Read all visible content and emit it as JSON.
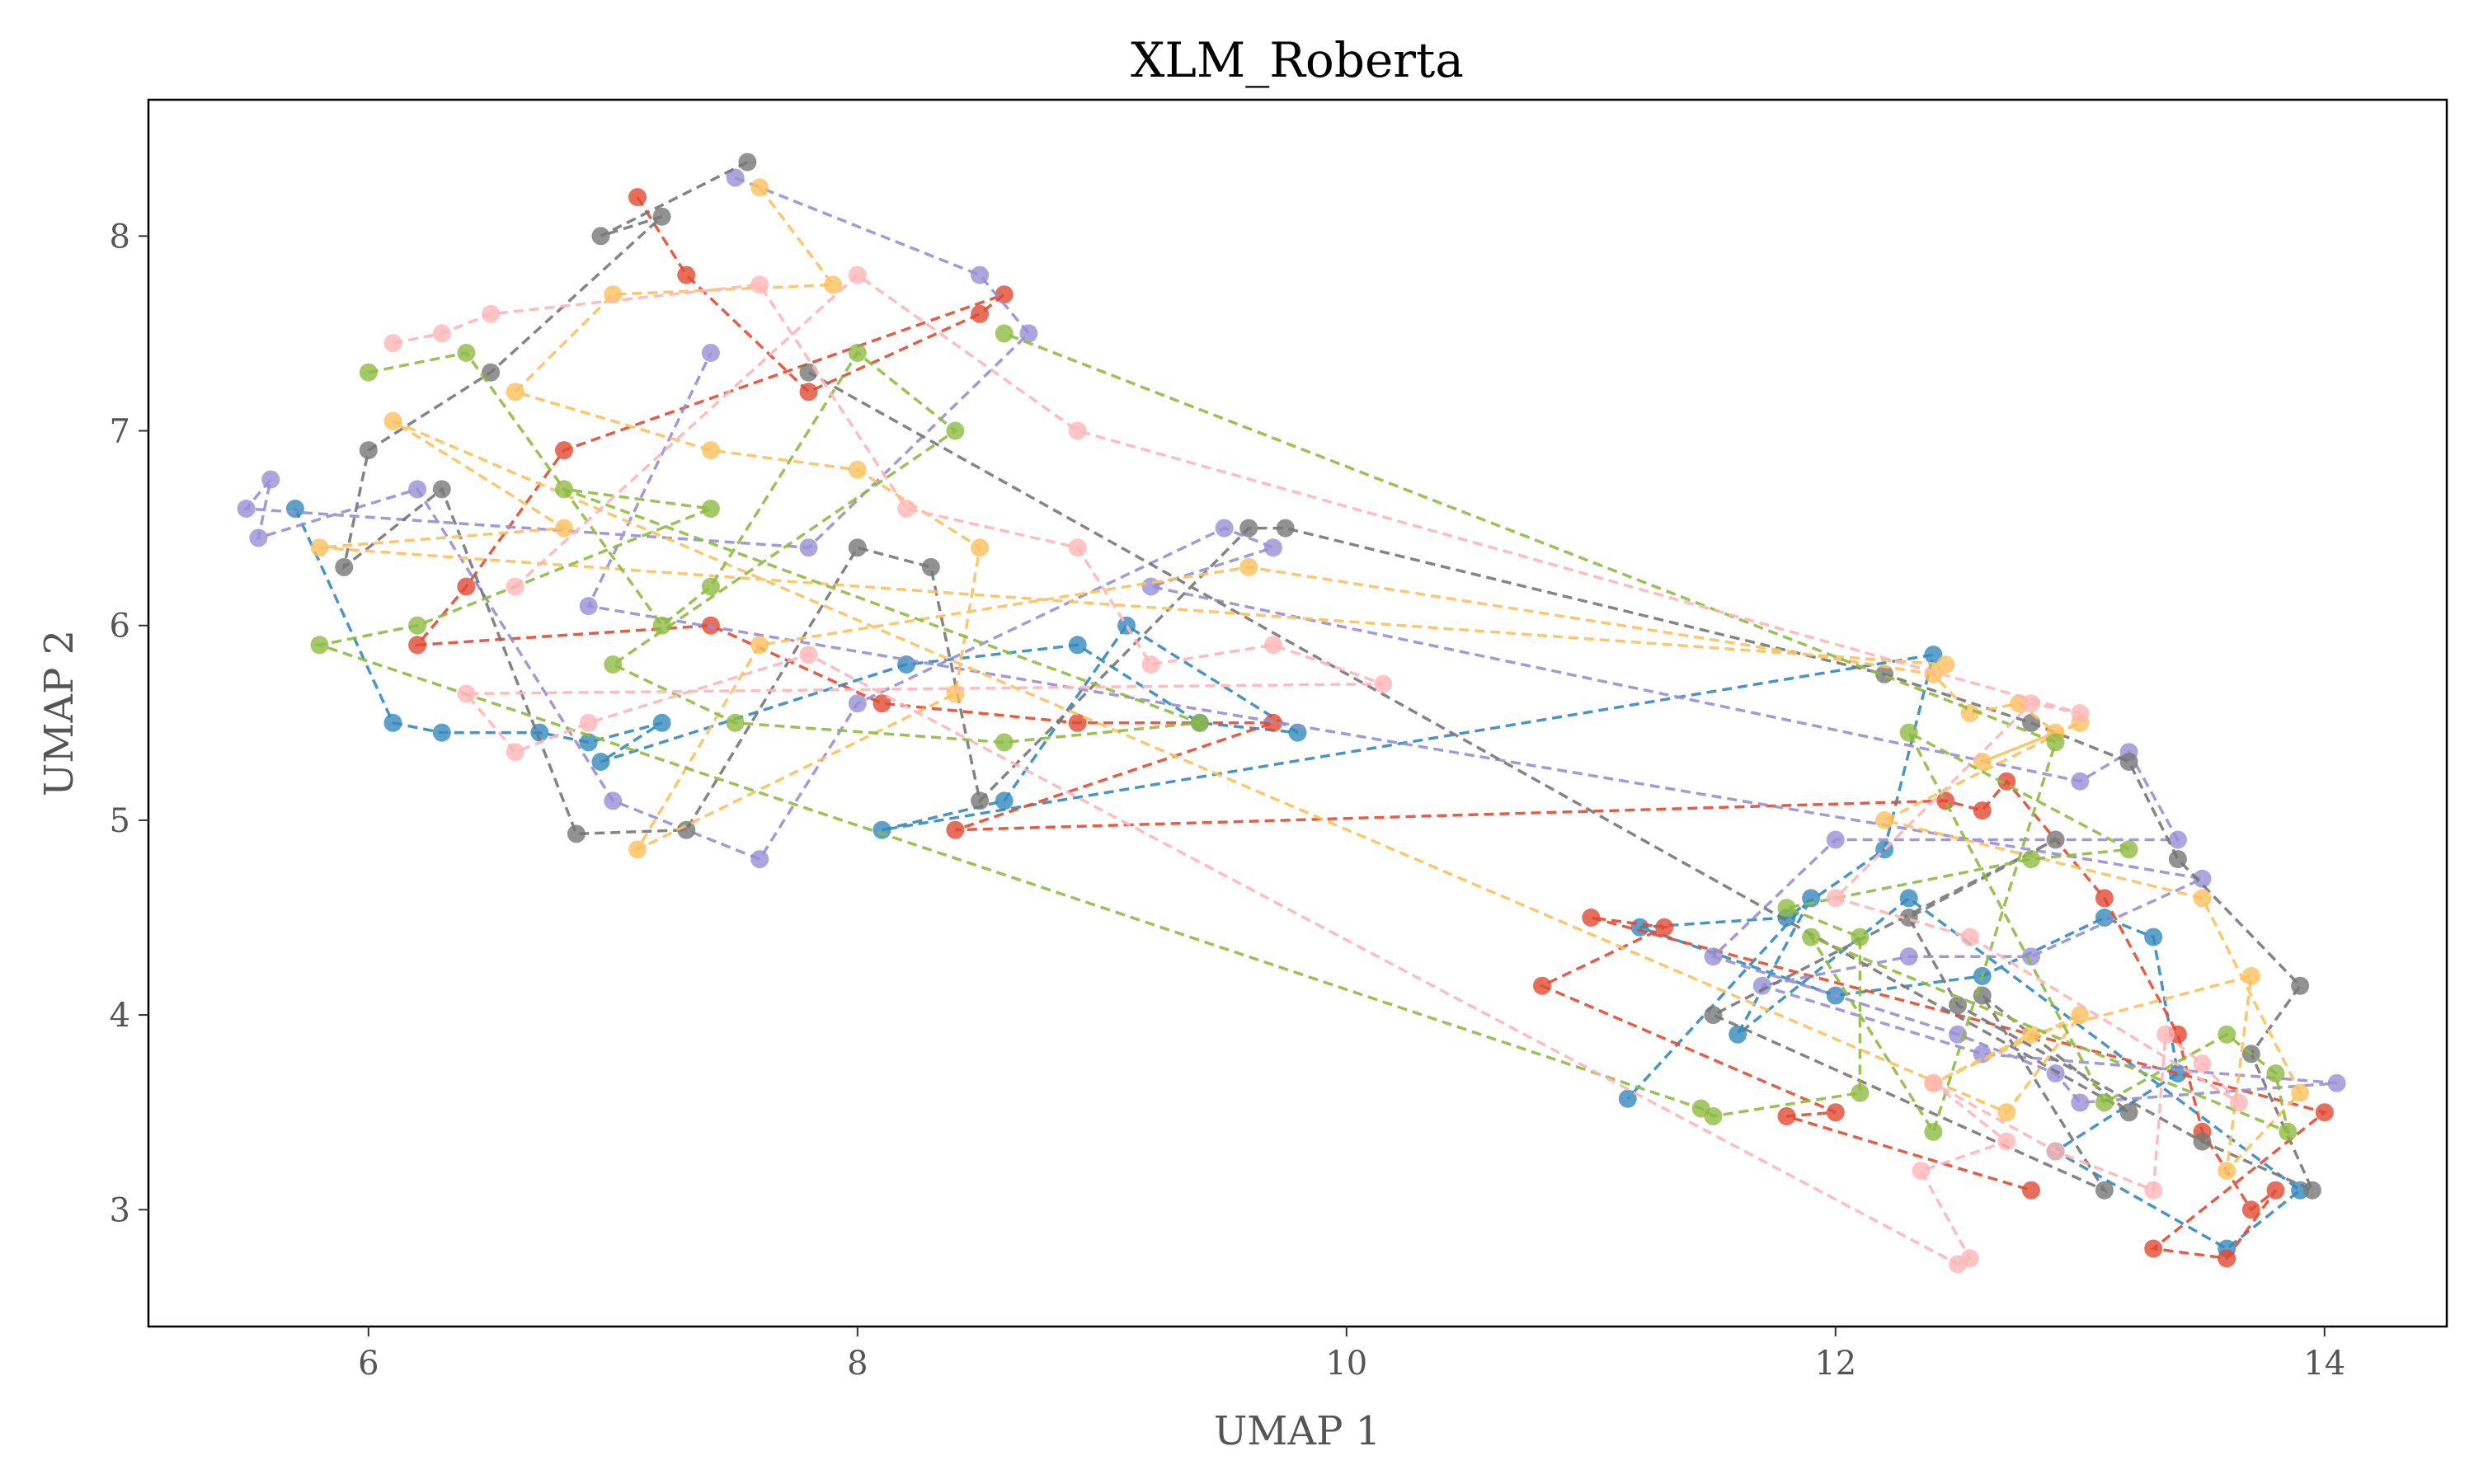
{
  "chart_data": {
    "type": "scatter",
    "title": "XLM_Roberta",
    "xlabel": "UMAP 1",
    "ylabel": "UMAP 2",
    "xlim": [
      5.1,
      14.5
    ],
    "ylim": [
      2.4,
      8.7
    ],
    "xticks": [
      6,
      8,
      10,
      12,
      14
    ],
    "yticks": [
      3,
      4,
      5,
      6,
      7,
      8
    ],
    "grid": false,
    "legend": "none",
    "connect_points": "dashed",
    "series": [
      {
        "color": "#348ABD",
        "values": [
          [
            5.7,
            6.6
          ],
          [
            6.1,
            5.5
          ],
          [
            6.3,
            5.45
          ],
          [
            6.7,
            5.45
          ],
          [
            6.9,
            5.4
          ],
          [
            7.2,
            5.5
          ],
          [
            6.95,
            5.3
          ],
          [
            8.2,
            5.8
          ],
          [
            8.9,
            5.9
          ],
          [
            9.4,
            5.5
          ],
          [
            9.8,
            5.45
          ],
          [
            9.1,
            6.0
          ],
          [
            8.6,
            5.1
          ],
          [
            8.1,
            4.95
          ],
          [
            12.4,
            5.85
          ],
          [
            12.2,
            4.85
          ],
          [
            11.8,
            4.5
          ],
          [
            11.2,
            4.45
          ],
          [
            12.0,
            4.1
          ],
          [
            12.6,
            4.2
          ],
          [
            13.1,
            4.5
          ],
          [
            13.3,
            4.4
          ],
          [
            13.4,
            3.7
          ],
          [
            12.9,
            3.3
          ],
          [
            13.6,
            2.8
          ],
          [
            13.9,
            3.1
          ],
          [
            12.3,
            4.6
          ],
          [
            11.6,
            3.9
          ],
          [
            11.9,
            4.6
          ],
          [
            11.15,
            3.57
          ]
        ]
      },
      {
        "color": "#E24A33",
        "values": [
          [
            7.1,
            8.2
          ],
          [
            7.3,
            7.8
          ],
          [
            7.8,
            7.2
          ],
          [
            8.5,
            7.6
          ],
          [
            8.6,
            7.7
          ],
          [
            6.8,
            6.9
          ],
          [
            6.4,
            6.2
          ],
          [
            6.2,
            5.9
          ],
          [
            7.4,
            6.0
          ],
          [
            8.1,
            5.6
          ],
          [
            8.9,
            5.5
          ],
          [
            9.7,
            5.5
          ],
          [
            8.4,
            4.95
          ],
          [
            12.45,
            5.1
          ],
          [
            12.6,
            5.05
          ],
          [
            12.7,
            5.2
          ],
          [
            13.1,
            4.6
          ],
          [
            13.4,
            3.9
          ],
          [
            13.5,
            3.4
          ],
          [
            13.7,
            3.0
          ],
          [
            13.8,
            3.1
          ],
          [
            13.6,
            2.75
          ],
          [
            13.3,
            2.8
          ],
          [
            14.0,
            3.5
          ],
          [
            11.0,
            4.5
          ],
          [
            11.3,
            4.45
          ],
          [
            10.8,
            4.15
          ],
          [
            12.0,
            3.5
          ],
          [
            11.8,
            3.48
          ],
          [
            12.8,
            3.1
          ]
        ]
      },
      {
        "color": "#988ED5",
        "values": [
          [
            7.5,
            8.3
          ],
          [
            8.5,
            7.8
          ],
          [
            8.7,
            7.5
          ],
          [
            7.8,
            6.4
          ],
          [
            5.5,
            6.6
          ],
          [
            5.6,
            6.75
          ],
          [
            5.55,
            6.45
          ],
          [
            6.2,
            6.7
          ],
          [
            7.0,
            5.1
          ],
          [
            7.6,
            4.8
          ],
          [
            8.0,
            5.6
          ],
          [
            9.5,
            6.5
          ],
          [
            9.7,
            6.4
          ],
          [
            9.2,
            6.2
          ],
          [
            13.0,
            5.2
          ],
          [
            13.2,
            5.35
          ],
          [
            13.4,
            4.9
          ],
          [
            12.0,
            4.9
          ],
          [
            11.5,
            4.3
          ],
          [
            12.5,
            3.9
          ],
          [
            12.9,
            3.7
          ],
          [
            13.0,
            3.55
          ],
          [
            14.05,
            3.65
          ],
          [
            12.6,
            3.8
          ],
          [
            11.7,
            4.15
          ],
          [
            12.3,
            4.3
          ],
          [
            12.8,
            4.3
          ],
          [
            13.5,
            4.7
          ],
          [
            6.9,
            6.1
          ],
          [
            7.4,
            7.4
          ]
        ]
      },
      {
        "color": "#777777",
        "values": [
          [
            7.55,
            8.38
          ],
          [
            6.95,
            8.0
          ],
          [
            7.2,
            8.1
          ],
          [
            6.5,
            7.3
          ],
          [
            6.0,
            6.9
          ],
          [
            5.9,
            6.3
          ],
          [
            6.3,
            6.7
          ],
          [
            6.85,
            4.93
          ],
          [
            7.3,
            4.95
          ],
          [
            8.0,
            6.4
          ],
          [
            8.3,
            6.3
          ],
          [
            8.5,
            5.1
          ],
          [
            9.6,
            6.5
          ],
          [
            9.75,
            6.5
          ],
          [
            12.2,
            5.75
          ],
          [
            12.8,
            5.5
          ],
          [
            13.2,
            5.3
          ],
          [
            13.4,
            4.8
          ],
          [
            13.9,
            4.15
          ],
          [
            13.7,
            3.8
          ],
          [
            13.95,
            3.1
          ],
          [
            13.5,
            3.35
          ],
          [
            12.5,
            4.05
          ],
          [
            12.3,
            4.5
          ],
          [
            12.9,
            4.9
          ],
          [
            11.5,
            4.0
          ],
          [
            13.1,
            3.1
          ],
          [
            12.6,
            4.1
          ],
          [
            13.2,
            3.5
          ],
          [
            7.8,
            7.3
          ]
        ]
      },
      {
        "color": "#FBC15E",
        "values": [
          [
            7.6,
            8.25
          ],
          [
            7.9,
            7.75
          ],
          [
            7.0,
            7.7
          ],
          [
            6.6,
            7.2
          ],
          [
            7.4,
            6.9
          ],
          [
            8.0,
            6.8
          ],
          [
            8.5,
            6.4
          ],
          [
            8.4,
            5.65
          ],
          [
            7.1,
            4.85
          ],
          [
            7.6,
            5.9
          ],
          [
            9.6,
            6.3
          ],
          [
            12.4,
            5.75
          ],
          [
            12.55,
            5.55
          ],
          [
            12.75,
            5.6
          ],
          [
            12.9,
            5.45
          ],
          [
            12.6,
            5.3
          ],
          [
            13.0,
            5.5
          ],
          [
            12.2,
            5.0
          ],
          [
            13.5,
            4.6
          ],
          [
            13.9,
            3.6
          ],
          [
            13.6,
            3.2
          ],
          [
            13.7,
            4.2
          ],
          [
            12.8,
            3.9
          ],
          [
            12.4,
            3.65
          ],
          [
            13.0,
            4.0
          ],
          [
            12.7,
            3.5
          ],
          [
            6.1,
            7.05
          ],
          [
            6.8,
            6.5
          ],
          [
            5.8,
            6.4
          ],
          [
            12.45,
            5.8
          ]
        ]
      },
      {
        "color": "#8EBA42",
        "values": [
          [
            6.0,
            7.3
          ],
          [
            6.4,
            7.4
          ],
          [
            7.2,
            6.0
          ],
          [
            7.4,
            6.2
          ],
          [
            8.0,
            7.4
          ],
          [
            8.4,
            7.0
          ],
          [
            7.0,
            5.8
          ],
          [
            7.5,
            5.5
          ],
          [
            8.6,
            5.4
          ],
          [
            9.4,
            5.5
          ],
          [
            6.8,
            6.7
          ],
          [
            7.4,
            6.6
          ],
          [
            6.2,
            6.0
          ],
          [
            5.8,
            5.9
          ],
          [
            11.45,
            3.52
          ],
          [
            11.5,
            3.48
          ],
          [
            12.1,
            3.6
          ],
          [
            12.1,
            4.4
          ],
          [
            11.8,
            4.55
          ],
          [
            12.8,
            4.8
          ],
          [
            13.2,
            4.85
          ],
          [
            12.3,
            5.45
          ],
          [
            13.1,
            3.55
          ],
          [
            13.6,
            3.9
          ],
          [
            13.8,
            3.7
          ],
          [
            13.85,
            3.4
          ],
          [
            11.9,
            4.4
          ],
          [
            12.4,
            3.4
          ],
          [
            12.9,
            5.4
          ],
          [
            8.6,
            7.5
          ]
        ]
      },
      {
        "color": "#FFB5B8",
        "values": [
          [
            6.1,
            7.45
          ],
          [
            6.3,
            7.5
          ],
          [
            6.5,
            7.6
          ],
          [
            7.6,
            7.75
          ],
          [
            8.2,
            6.6
          ],
          [
            8.9,
            6.4
          ],
          [
            9.2,
            5.8
          ],
          [
            9.7,
            5.9
          ],
          [
            10.15,
            5.7
          ],
          [
            6.4,
            5.65
          ],
          [
            6.6,
            5.35
          ],
          [
            6.9,
            5.5
          ],
          [
            7.8,
            5.85
          ],
          [
            12.5,
            2.72
          ],
          [
            12.55,
            2.75
          ],
          [
            12.35,
            3.2
          ],
          [
            12.7,
            3.35
          ],
          [
            12.4,
            3.65
          ],
          [
            12.9,
            3.3
          ],
          [
            13.3,
            3.1
          ],
          [
            13.35,
            3.9
          ],
          [
            13.5,
            3.75
          ],
          [
            13.65,
            3.55
          ],
          [
            12.55,
            4.4
          ],
          [
            12.0,
            4.6
          ],
          [
            12.8,
            5.6
          ],
          [
            13.0,
            5.55
          ],
          [
            8.9,
            7.0
          ],
          [
            8.0,
            7.8
          ],
          [
            6.6,
            6.2
          ]
        ]
      }
    ]
  }
}
